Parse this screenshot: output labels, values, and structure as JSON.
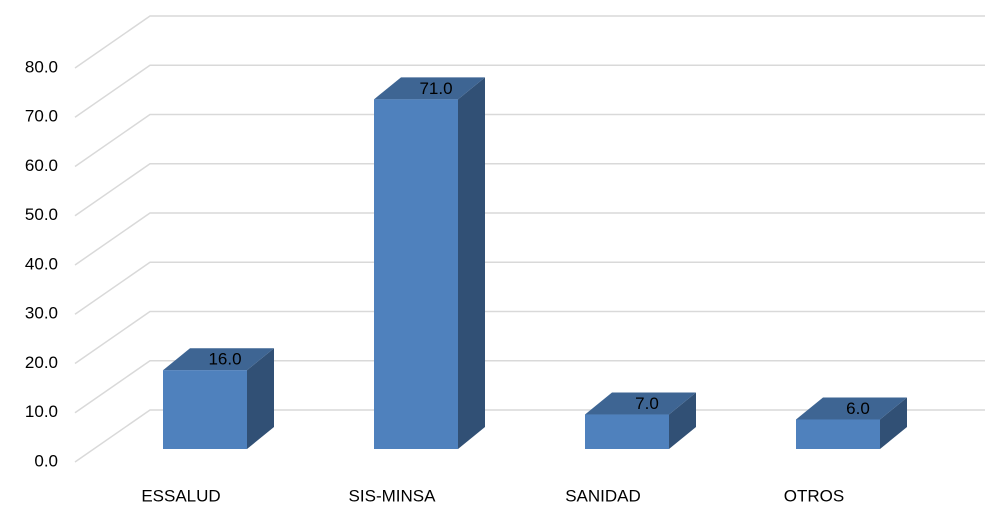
{
  "chart_data": {
    "type": "bar3d",
    "categories": [
      "ESSALUD",
      "SIS-MINSA",
      "SANIDAD",
      "OTROS"
    ],
    "values": [
      16,
      71,
      7,
      6
    ],
    "value_labels": [
      "16.0",
      "71.0",
      "7.0",
      "6.0"
    ],
    "color": "#4f81bd",
    "ylim": [
      0,
      80
    ],
    "yticks": [
      {
        "value": 0,
        "label": "0.0"
      },
      {
        "value": 10,
        "label": "10.0"
      },
      {
        "value": 20,
        "label": "20.0"
      },
      {
        "value": 30,
        "label": "30.0"
      },
      {
        "value": 40,
        "label": "40.0"
      },
      {
        "value": 50,
        "label": "50.0"
      },
      {
        "value": 60,
        "label": "60.0"
      },
      {
        "value": 70,
        "label": "70.0"
      },
      {
        "value": 80,
        "label": "80.0"
      }
    ],
    "grid": true
  }
}
